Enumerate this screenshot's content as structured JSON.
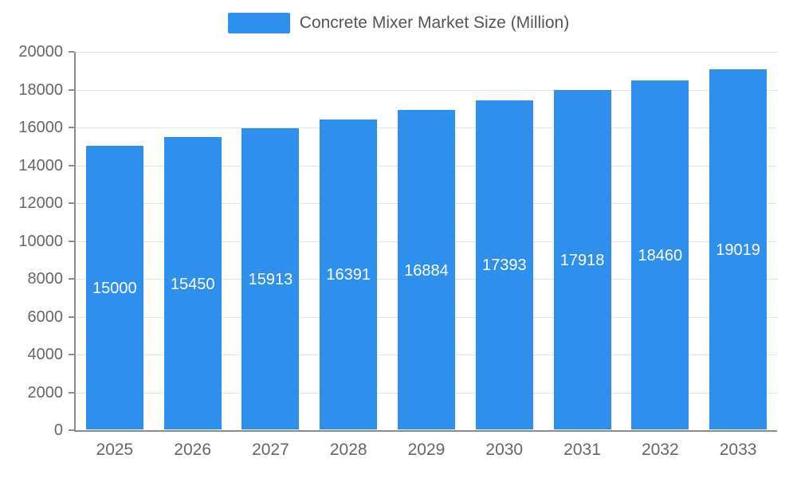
{
  "legend": {
    "label": "Concrete Mixer Market Size (Million)"
  },
  "chart_data": {
    "type": "bar",
    "title": "Concrete Mixer Market Size (Million)",
    "categories": [
      "2025",
      "2026",
      "2027",
      "2028",
      "2029",
      "2030",
      "2031",
      "2032",
      "2033"
    ],
    "values": [
      15000,
      15450,
      15913,
      16391,
      16884,
      17393,
      17918,
      18460,
      19019
    ],
    "xlabel": "",
    "ylabel": "",
    "ylim": [
      0,
      20000
    ],
    "ytick_step": 2000,
    "ytick_labels": [
      "0",
      "2000",
      "4000",
      "6000",
      "8000",
      "10000",
      "12000",
      "14000",
      "16000",
      "18000",
      "20000"
    ],
    "grid": true,
    "legend_position": "top",
    "value_labels_inside_bars": true,
    "colors": {
      "bar": "#2E90EC",
      "bar_label_text": "#ffffff",
      "axis_line": "#8C8C8C",
      "axis_text": "#666666",
      "grid_line": "#DEE4EF",
      "legend_text": "#555555"
    }
  }
}
